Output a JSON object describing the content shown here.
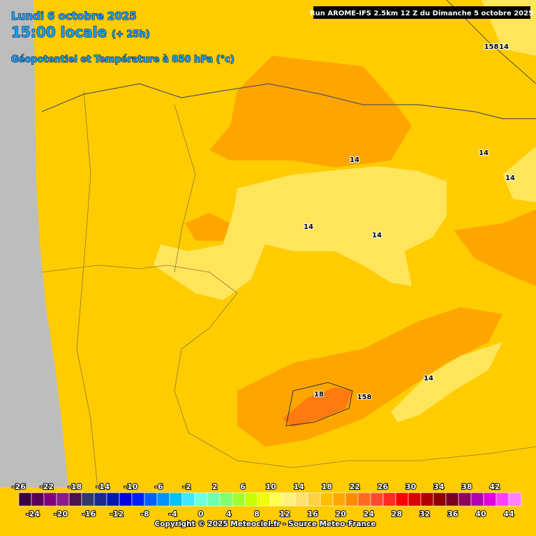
{
  "header": {
    "date": "Lundi 6 octobre 2025",
    "time": "15:00 locale",
    "lead": "(+ 25h)",
    "field": "Géopotentiel et Température à 850 hPa (°c)",
    "run": "Run AROME-IFS 2.5km 12 Z du Dimanche 5 octobre 2025"
  },
  "map": {
    "labels": [
      "158",
      "14",
      "14",
      "14",
      "14",
      "14",
      "14",
      "18",
      "158",
      "14"
    ]
  },
  "colorbar": {
    "top_ticks": [
      -26,
      -22,
      -18,
      -14,
      -10,
      -6,
      -2,
      2,
      6,
      10,
      14,
      18,
      22,
      26,
      30,
      34,
      38,
      42
    ],
    "bottom_ticks": [
      -24,
      -20,
      -16,
      -12,
      -8,
      -4,
      0,
      4,
      8,
      12,
      16,
      20,
      24,
      28,
      32,
      36,
      40,
      44
    ],
    "colors": [
      "#3c0040",
      "#5a0058",
      "#820082",
      "#8c1a8c",
      "#4a1050",
      "#303a70",
      "#1a2a90",
      "#0018b0",
      "#0000e0",
      "#0020ff",
      "#0060ff",
      "#0090ff",
      "#00c0ff",
      "#40e8ff",
      "#70ffe0",
      "#70ffb0",
      "#80ff70",
      "#a0ff30",
      "#c8ff00",
      "#f0ff00",
      "#ffff50",
      "#fff080",
      "#ffe070",
      "#ffd040",
      "#ffc000",
      "#ffa800",
      "#ff8c00",
      "#ff6a20",
      "#ff4a30",
      "#ff2a20",
      "#ff0000",
      "#d80000",
      "#b00000",
      "#900000",
      "#780020",
      "#900060",
      "#b000b0",
      "#e000e0",
      "#ff40ff",
      "#ff80ff"
    ]
  },
  "footer": {
    "copyright": "Copyright © 2025 Meteociel.fr - Source Meteo-France"
  }
}
